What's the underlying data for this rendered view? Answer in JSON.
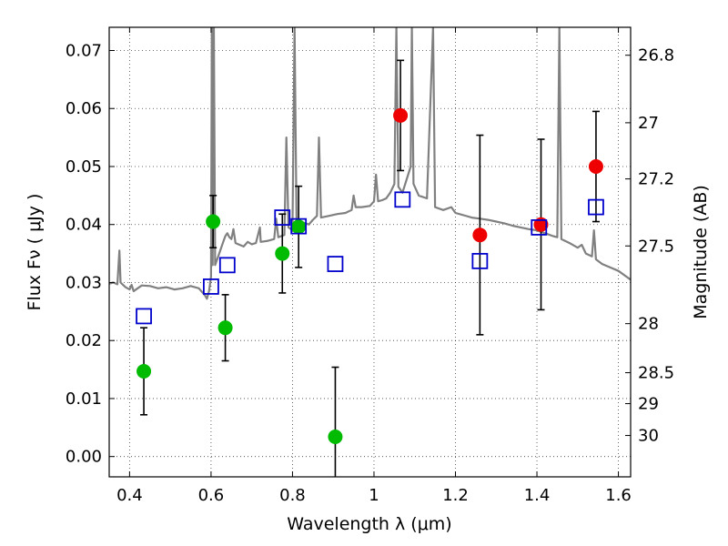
{
  "chart_data": {
    "type": "scatter",
    "xlabel": "Wavelength λ (μm)",
    "ylabel": "Flux Fν ( μJy )",
    "y2label": "Magnitude (AB)",
    "xlim": [
      0.35,
      1.63
    ],
    "ylim": [
      -0.0035,
      0.074
    ],
    "grid": true,
    "x_ticks": [
      {
        "value": 0.4,
        "label": "0.4"
      },
      {
        "value": 0.6,
        "label": "0.6"
      },
      {
        "value": 0.8,
        "label": "0.8"
      },
      {
        "value": 1.0,
        "label": "1"
      },
      {
        "value": 1.2,
        "label": "1.2"
      },
      {
        "value": 1.4,
        "label": "1.4"
      },
      {
        "value": 1.6,
        "label": "1.6"
      }
    ],
    "y_ticks": [
      {
        "value": 0.0,
        "label": "0.00"
      },
      {
        "value": 0.01,
        "label": "0.01"
      },
      {
        "value": 0.02,
        "label": "0.02"
      },
      {
        "value": 0.03,
        "label": "0.03"
      },
      {
        "value": 0.04,
        "label": "0.04"
      },
      {
        "value": 0.05,
        "label": "0.05"
      },
      {
        "value": 0.06,
        "label": "0.06"
      },
      {
        "value": 0.07,
        "label": "0.07"
      }
    ],
    "mag_ticks": [
      {
        "mag": 26.8,
        "label": "26.8"
      },
      {
        "mag": 27.0,
        "label": "27"
      },
      {
        "mag": 27.2,
        "label": "27.2"
      },
      {
        "mag": 27.5,
        "label": "27.5"
      },
      {
        "mag": 28.0,
        "label": "28"
      },
      {
        "mag": 28.5,
        "label": "28.5"
      },
      {
        "mag": 29.0,
        "label": "29"
      },
      {
        "mag": 30.0,
        "label": "30"
      }
    ],
    "series": [
      {
        "kind": "points-with-errors",
        "color": "#00bb00",
        "points": [
          {
            "x": 0.435,
            "y": 0.0147,
            "err": 0.0075
          },
          {
            "x": 0.605,
            "y": 0.0405,
            "err": 0.0045
          },
          {
            "x": 0.635,
            "y": 0.0222,
            "err": 0.0057
          },
          {
            "x": 0.775,
            "y": 0.035,
            "err": 0.0068
          },
          {
            "x": 0.815,
            "y": 0.0396,
            "err": 0.007
          },
          {
            "x": 0.905,
            "y": 0.0034,
            "err": 0.012
          }
        ]
      },
      {
        "kind": "points-with-errors",
        "color": "#ee0000",
        "points": [
          {
            "x": 1.065,
            "y": 0.0588,
            "err": 0.0095
          },
          {
            "x": 1.26,
            "y": 0.0382,
            "err": 0.0172
          },
          {
            "x": 1.41,
            "y": 0.04,
            "err": 0.0147
          },
          {
            "x": 1.545,
            "y": 0.05,
            "err": 0.0095
          }
        ]
      },
      {
        "kind": "open-squares",
        "color": "#0000cc",
        "points": [
          {
            "x": 0.435,
            "y": 0.0242
          },
          {
            "x": 0.6,
            "y": 0.0293
          },
          {
            "x": 0.64,
            "y": 0.033
          },
          {
            "x": 0.775,
            "y": 0.0412
          },
          {
            "x": 0.815,
            "y": 0.0397
          },
          {
            "x": 0.905,
            "y": 0.0332
          },
          {
            "x": 1.07,
            "y": 0.0443
          },
          {
            "x": 1.26,
            "y": 0.0337
          },
          {
            "x": 1.405,
            "y": 0.0395
          },
          {
            "x": 1.545,
            "y": 0.043
          }
        ]
      },
      {
        "kind": "line",
        "color": "#808080",
        "points": [
          [
            0.35,
            0.0298
          ],
          [
            0.36,
            0.03
          ],
          [
            0.37,
            0.0297
          ],
          [
            0.375,
            0.0355
          ],
          [
            0.378,
            0.03
          ],
          [
            0.39,
            0.0292
          ],
          [
            0.4,
            0.0288
          ],
          [
            0.405,
            0.0296
          ],
          [
            0.41,
            0.0285
          ],
          [
            0.42,
            0.029
          ],
          [
            0.43,
            0.0295
          ],
          [
            0.45,
            0.0294
          ],
          [
            0.47,
            0.029
          ],
          [
            0.49,
            0.0292
          ],
          [
            0.51,
            0.0288
          ],
          [
            0.53,
            0.029
          ],
          [
            0.55,
            0.0294
          ],
          [
            0.57,
            0.029
          ],
          [
            0.585,
            0.0278
          ],
          [
            0.59,
            0.0272
          ],
          [
            0.595,
            0.0285
          ],
          [
            0.6,
            0.031
          ],
          [
            0.602,
            0.074
          ],
          [
            0.604,
            0.033
          ],
          [
            0.607,
            0.074
          ],
          [
            0.61,
            0.033
          ],
          [
            0.62,
            0.035
          ],
          [
            0.63,
            0.037
          ],
          [
            0.635,
            0.038
          ],
          [
            0.64,
            0.0385
          ],
          [
            0.645,
            0.0378
          ],
          [
            0.65,
            0.0375
          ],
          [
            0.655,
            0.0392
          ],
          [
            0.66,
            0.0368
          ],
          [
            0.67,
            0.0365
          ],
          [
            0.68,
            0.0362
          ],
          [
            0.69,
            0.037
          ],
          [
            0.7,
            0.0366
          ],
          [
            0.71,
            0.0368
          ],
          [
            0.72,
            0.0395
          ],
          [
            0.722,
            0.037
          ],
          [
            0.74,
            0.0372
          ],
          [
            0.755,
            0.0375
          ],
          [
            0.76,
            0.041
          ],
          [
            0.765,
            0.0378
          ],
          [
            0.78,
            0.0382
          ],
          [
            0.785,
            0.055
          ],
          [
            0.79,
            0.0395
          ],
          [
            0.8,
            0.039
          ],
          [
            0.805,
            0.074
          ],
          [
            0.81,
            0.04
          ],
          [
            0.82,
            0.0405
          ],
          [
            0.84,
            0.04
          ],
          [
            0.85,
            0.0408
          ],
          [
            0.86,
            0.0415
          ],
          [
            0.865,
            0.055
          ],
          [
            0.87,
            0.0412
          ],
          [
            0.89,
            0.0415
          ],
          [
            0.91,
            0.0418
          ],
          [
            0.93,
            0.042
          ],
          [
            0.945,
            0.0425
          ],
          [
            0.95,
            0.045
          ],
          [
            0.955,
            0.043
          ],
          [
            0.97,
            0.043
          ],
          [
            0.99,
            0.0432
          ],
          [
            1.0,
            0.044
          ],
          [
            1.005,
            0.0486
          ],
          [
            1.01,
            0.044
          ],
          [
            1.02,
            0.0442
          ],
          [
            1.03,
            0.0445
          ],
          [
            1.04,
            0.0455
          ],
          [
            1.05,
            0.047
          ],
          [
            1.055,
            0.074
          ],
          [
            1.06,
            0.0465
          ],
          [
            1.07,
            0.0455
          ],
          [
            1.09,
            0.05
          ],
          [
            1.093,
            0.074
          ],
          [
            1.097,
            0.047
          ],
          [
            1.11,
            0.045
          ],
          [
            1.13,
            0.0445
          ],
          [
            1.145,
            0.074
          ],
          [
            1.15,
            0.043
          ],
          [
            1.17,
            0.0425
          ],
          [
            1.19,
            0.043
          ],
          [
            1.2,
            0.042
          ],
          [
            1.22,
            0.0416
          ],
          [
            1.24,
            0.0412
          ],
          [
            1.26,
            0.041
          ],
          [
            1.28,
            0.0408
          ],
          [
            1.3,
            0.0405
          ],
          [
            1.32,
            0.0402
          ],
          [
            1.34,
            0.0398
          ],
          [
            1.36,
            0.0395
          ],
          [
            1.38,
            0.0392
          ],
          [
            1.4,
            0.039
          ],
          [
            1.42,
            0.0385
          ],
          [
            1.44,
            0.038
          ],
          [
            1.45,
            0.0378
          ],
          [
            1.455,
            0.074
          ],
          [
            1.46,
            0.0375
          ],
          [
            1.48,
            0.0368
          ],
          [
            1.5,
            0.036
          ],
          [
            1.51,
            0.0365
          ],
          [
            1.52,
            0.035
          ],
          [
            1.535,
            0.0345
          ],
          [
            1.54,
            0.039
          ],
          [
            1.545,
            0.034
          ],
          [
            1.56,
            0.0332
          ],
          [
            1.58,
            0.0326
          ],
          [
            1.6,
            0.032
          ],
          [
            1.63,
            0.0305
          ]
        ]
      }
    ]
  }
}
